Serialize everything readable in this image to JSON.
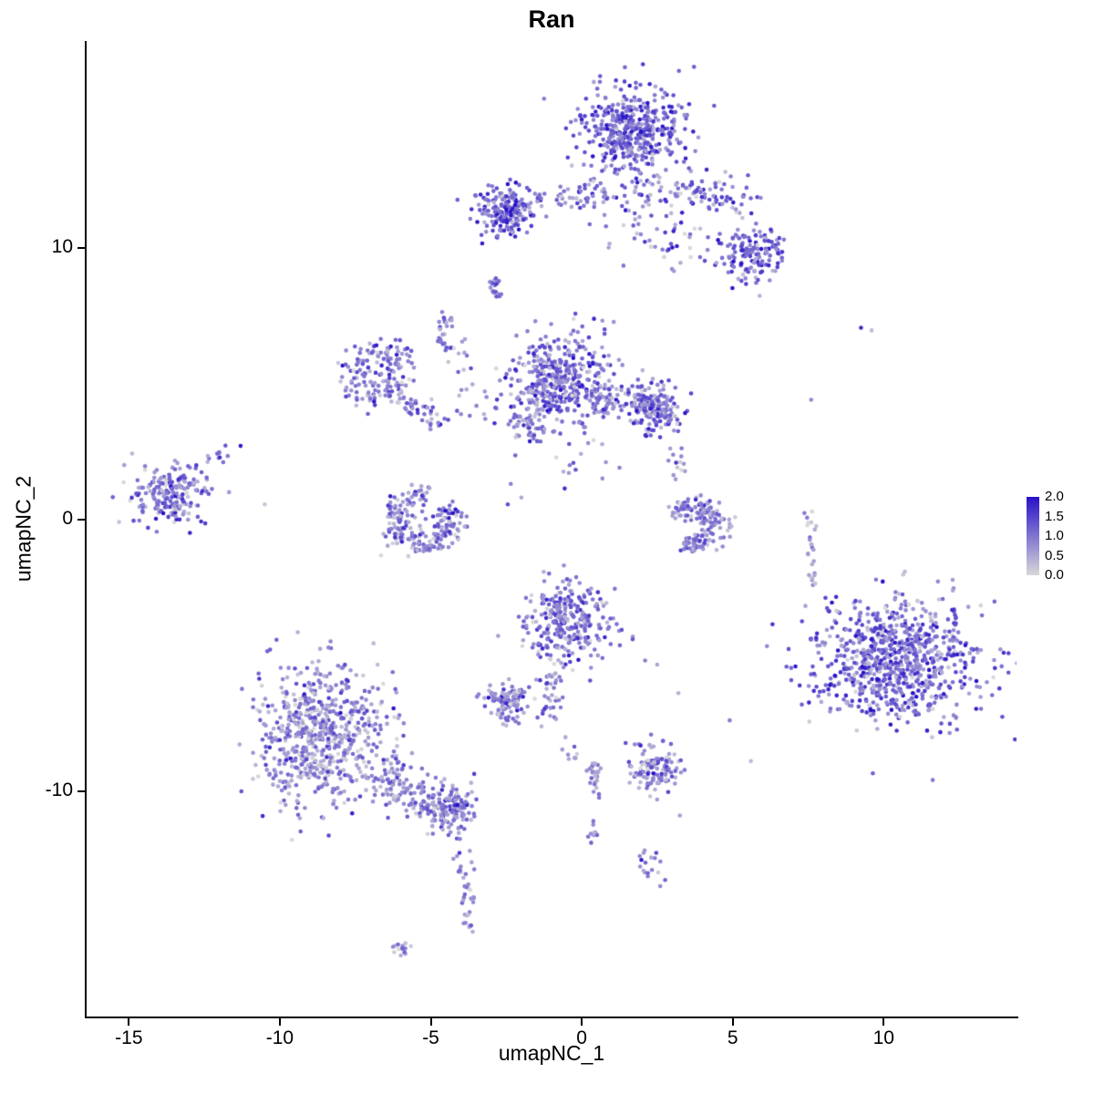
{
  "chart_data": {
    "type": "scatter",
    "title": "Ran",
    "xlabel": "umapNC_1",
    "ylabel": "umapNC_2",
    "xlim": [
      -16.4,
      14.4
    ],
    "ylim": [
      -18.3,
      17.6
    ],
    "x_ticks": [
      -15,
      -10,
      -5,
      0,
      5,
      10
    ],
    "y_ticks": [
      -10,
      0,
      10
    ],
    "grid": false,
    "legend": {
      "position": "right",
      "labels": [
        "2.0",
        "1.5",
        "1.0",
        "0.5",
        "0.0"
      ]
    },
    "color_scale": {
      "low": "#d8d8d8",
      "high": "#2712c8",
      "domain": [
        0,
        2
      ]
    },
    "point_radius": 2.3,
    "seed": 11,
    "n_points_approx": 4970,
    "clusters": [
      {
        "type": "gauss",
        "cx": 1.7,
        "cy": 14.4,
        "sx": 0.85,
        "sy": 0.75,
        "n": 420,
        "expr": 1.15,
        "esd": 0.45
      },
      {
        "type": "gauss",
        "cx": 2.2,
        "cy": 11.8,
        "sx": 1.05,
        "sy": 0.7,
        "n": 85,
        "expr": 0.9,
        "esd": 0.5
      },
      {
        "type": "line",
        "x1": 3.3,
        "y1": 12.2,
        "x2": 5.6,
        "y2": 11.6,
        "j": 0.32,
        "n": 65,
        "expr": 1.0,
        "esd": 0.5
      },
      {
        "type": "gauss",
        "cx": 5.6,
        "cy": 9.7,
        "sx": 0.55,
        "sy": 0.5,
        "n": 140,
        "expr": 1.2,
        "esd": 0.5
      },
      {
        "type": "gauss",
        "cx": 3.2,
        "cy": 10.2,
        "sx": 0.85,
        "sy": 0.55,
        "n": 35,
        "expr": 0.8,
        "esd": 0.45
      },
      {
        "type": "points",
        "pts": [
          [
            3.0,
            10.0,
            2.0
          ],
          [
            3.15,
            10.05,
            1.9
          ],
          [
            2.88,
            9.93,
            1.7
          ]
        ]
      },
      {
        "type": "gauss",
        "cx": -2.5,
        "cy": 11.4,
        "sx": 0.55,
        "sy": 0.45,
        "n": 185,
        "expr": 1.25,
        "esd": 0.5
      },
      {
        "type": "line",
        "x1": -1.3,
        "y1": 11.6,
        "x2": 0.6,
        "y2": 12.1,
        "j": 0.3,
        "n": 50,
        "expr": 0.9,
        "esd": 0.45
      },
      {
        "type": "line",
        "x1": -2.9,
        "y1": 8.85,
        "x2": -2.8,
        "y2": 8.2,
        "j": 0.1,
        "n": 20,
        "expr": 1.1,
        "esd": 0.4
      },
      {
        "type": "line",
        "x1": -4.55,
        "y1": 7.55,
        "x2": -4.45,
        "y2": 6.0,
        "j": 0.12,
        "n": 28,
        "expr": 1.0,
        "esd": 0.5
      },
      {
        "type": "arc",
        "cx": -6.8,
        "cy": 5.4,
        "r": 0.85,
        "a0": 0,
        "a1": 360,
        "j": 0.3,
        "n": 150,
        "expr": 0.95,
        "esd": 0.45
      },
      {
        "type": "line",
        "x1": -5.9,
        "y1": 4.5,
        "x2": -4.9,
        "y2": 3.6,
        "j": 0.3,
        "n": 45,
        "expr": 0.9,
        "esd": 0.45
      },
      {
        "type": "gauss",
        "cx": -3.9,
        "cy": 5.8,
        "sx": 0.4,
        "sy": 0.55,
        "n": 12,
        "expr": 0.9,
        "esd": 0.4
      },
      {
        "type": "gauss",
        "cx": -3.4,
        "cy": 4.0,
        "sx": 0.55,
        "sy": 0.4,
        "n": 14,
        "expr": 0.9,
        "esd": 0.4
      },
      {
        "type": "gauss",
        "cx": -0.75,
        "cy": 5.1,
        "sx": 0.85,
        "sy": 0.8,
        "n": 400,
        "expr": 1.0,
        "esd": 0.48
      },
      {
        "type": "line",
        "x1": -2.3,
        "y1": 3.9,
        "x2": -1.5,
        "y2": 3.2,
        "j": 0.25,
        "n": 40,
        "expr": 0.9,
        "esd": 0.45
      },
      {
        "type": "line",
        "x1": 0.4,
        "y1": 4.5,
        "x2": 1.9,
        "y2": 4.15,
        "j": 0.3,
        "n": 75,
        "expr": 0.9,
        "esd": 0.45
      },
      {
        "type": "gauss",
        "cx": 2.4,
        "cy": 4.15,
        "sx": 0.42,
        "sy": 0.52,
        "n": 160,
        "expr": 1.05,
        "esd": 0.45
      },
      {
        "type": "gauss",
        "cx": 0.0,
        "cy": 7.3,
        "sx": 0.5,
        "sy": 0.55,
        "n": 9,
        "expr": 0.8,
        "esd": 0.4
      },
      {
        "type": "gauss",
        "cx": -0.3,
        "cy": 2.2,
        "sx": 0.6,
        "sy": 0.6,
        "n": 16,
        "expr": 0.75,
        "esd": 0.4
      },
      {
        "type": "points",
        "pts": [
          [
            -2.2,
            2.35,
            1.2
          ],
          [
            -2.0,
            0.8,
            0.5
          ],
          [
            -2.35,
            1.3,
            0.9
          ],
          [
            -2.45,
            0.55,
            1.4
          ],
          [
            0.8,
            2.1,
            0.7
          ],
          [
            1.25,
            1.9,
            0.9
          ]
        ]
      },
      {
        "type": "gauss",
        "cx": -13.7,
        "cy": 0.9,
        "sx": 0.6,
        "sy": 0.55,
        "n": 200,
        "expr": 0.95,
        "esd": 0.5
      },
      {
        "type": "line",
        "x1": -12.9,
        "y1": 1.7,
        "x2": -11.7,
        "y2": 2.55,
        "j": 0.18,
        "n": 16,
        "expr": 1.0,
        "esd": 0.45
      },
      {
        "type": "points",
        "pts": [
          [
            -11.3,
            2.7,
            1.9
          ],
          [
            -10.5,
            0.55,
            0.2
          ]
        ]
      },
      {
        "type": "arc",
        "cx": -5.25,
        "cy": -0.05,
        "r": 0.92,
        "a0": 80,
        "a1": 400,
        "j": 0.27,
        "n": 210,
        "expr": 0.85,
        "esd": 0.45
      },
      {
        "type": "arc",
        "cx": 3.75,
        "cy": -0.2,
        "r": 0.72,
        "a0": -120,
        "a1": 160,
        "j": 0.22,
        "n": 150,
        "expr": 0.95,
        "esd": 0.45
      },
      {
        "type": "line",
        "x1": 3.0,
        "y1": 2.9,
        "x2": 3.4,
        "y2": 1.1,
        "j": 0.25,
        "n": 14,
        "expr": 0.8,
        "esd": 0.4
      },
      {
        "type": "gauss",
        "cx": 5.0,
        "cy": -0.3,
        "sx": 0.25,
        "sy": 0.35,
        "n": 6,
        "expr": 0.4,
        "esd": 0.3
      },
      {
        "type": "points",
        "pts": [
          [
            9.25,
            7.05,
            1.8
          ],
          [
            9.6,
            6.95,
            0.3
          ],
          [
            7.6,
            4.4,
            0.8
          ]
        ]
      },
      {
        "type": "line",
        "x1": 7.6,
        "y1": 0.4,
        "x2": 7.68,
        "y2": -2.3,
        "j": 0.12,
        "n": 26,
        "expr": 0.6,
        "esd": 0.4
      },
      {
        "type": "gauss",
        "cx": 10.4,
        "cy": -5.2,
        "sx": 1.35,
        "sy": 1.15,
        "n": 750,
        "expr": 1.1,
        "esd": 0.5
      },
      {
        "type": "gauss",
        "cx": 10.4,
        "cy": -5.0,
        "sx": 1.75,
        "sy": 1.5,
        "n": 60,
        "expr": 0.9,
        "esd": 0.5
      },
      {
        "type": "gauss",
        "cx": -0.5,
        "cy": -3.8,
        "sx": 0.72,
        "sy": 0.78,
        "n": 300,
        "expr": 1.0,
        "esd": 0.48
      },
      {
        "type": "line",
        "x1": -0.9,
        "y1": -5.3,
        "x2": -1.1,
        "y2": -7.3,
        "j": 0.2,
        "n": 38,
        "expr": 0.9,
        "esd": 0.45
      },
      {
        "type": "gauss",
        "cx": -2.4,
        "cy": -6.8,
        "sx": 0.38,
        "sy": 0.33,
        "n": 100,
        "expr": 0.9,
        "esd": 0.45
      },
      {
        "type": "gauss",
        "cx": -8.7,
        "cy": -8.0,
        "sx": 1.15,
        "sy": 1.35,
        "n": 650,
        "expr": 0.8,
        "esd": 0.45
      },
      {
        "type": "line",
        "x1": -6.8,
        "y1": -9.3,
        "x2": -4.8,
        "y2": -10.7,
        "j": 0.4,
        "n": 120,
        "expr": 0.85,
        "esd": 0.45
      },
      {
        "type": "gauss",
        "cx": -4.3,
        "cy": -10.7,
        "sx": 0.42,
        "sy": 0.42,
        "n": 130,
        "expr": 0.9,
        "esd": 0.45
      },
      {
        "type": "line",
        "x1": -4.0,
        "y1": -11.6,
        "x2": -3.7,
        "y2": -14.2,
        "j": 0.15,
        "n": 28,
        "expr": 0.8,
        "esd": 0.4
      },
      {
        "type": "line",
        "x1": -3.75,
        "y1": -14.5,
        "x2": -3.65,
        "y2": -15.5,
        "j": 0.1,
        "n": 10,
        "expr": 0.7,
        "esd": 0.4
      },
      {
        "type": "gauss",
        "cx": -6.05,
        "cy": -15.8,
        "sx": 0.22,
        "sy": 0.15,
        "n": 13,
        "expr": 0.6,
        "esd": 0.35
      },
      {
        "type": "gauss",
        "cx": 2.45,
        "cy": -9.2,
        "sx": 0.42,
        "sy": 0.45,
        "n": 120,
        "expr": 0.85,
        "esd": 0.45
      },
      {
        "type": "line",
        "x1": 0.35,
        "y1": -8.9,
        "x2": 0.5,
        "y2": -10.2,
        "j": 0.12,
        "n": 28,
        "expr": 0.8,
        "esd": 0.4
      },
      {
        "type": "gauss",
        "cx": -0.25,
        "cy": -8.7,
        "sx": 0.2,
        "sy": 0.22,
        "n": 8,
        "expr": 0.7,
        "esd": 0.35
      },
      {
        "type": "gauss",
        "cx": 2.25,
        "cy": -12.5,
        "sx": 0.25,
        "sy": 0.42,
        "n": 17,
        "expr": 0.9,
        "esd": 0.4
      },
      {
        "type": "gauss",
        "cx": 0.3,
        "cy": -11.5,
        "sx": 0.15,
        "sy": 0.25,
        "n": 9,
        "expr": 0.7,
        "esd": 0.35
      },
      {
        "type": "points",
        "pts": [
          [
            2.1,
            -5.2,
            0.9
          ],
          [
            2.5,
            -5.35,
            0.5
          ],
          [
            4.9,
            -7.4,
            0.9
          ],
          [
            3.25,
            -10.9,
            0.6
          ],
          [
            2.6,
            -13.5,
            0.8
          ],
          [
            3.2,
            -6.4,
            0.4
          ],
          [
            5.6,
            -8.9,
            0.3
          ]
        ]
      }
    ]
  }
}
